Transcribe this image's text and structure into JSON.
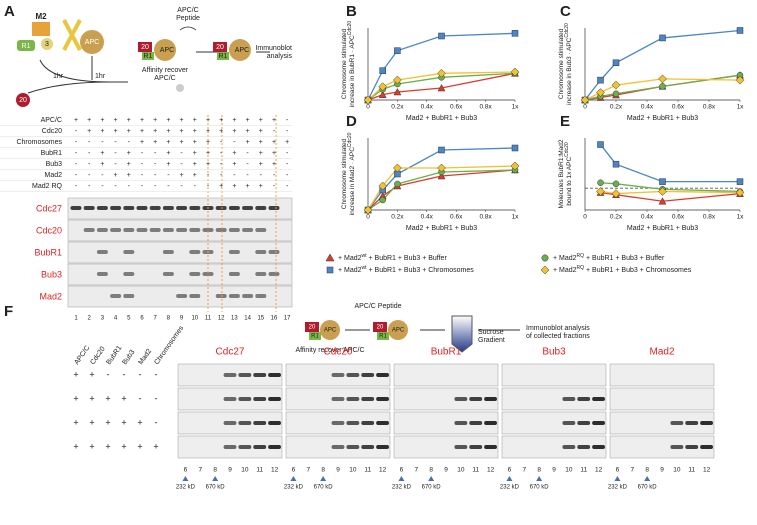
{
  "panel_labels": [
    "A",
    "B",
    "C",
    "D",
    "E",
    "F"
  ],
  "panel_a": {
    "schematic": {
      "m2": "M2",
      "r1": "R1",
      "bub3": "3",
      "apc": "APC",
      "cdc20": "20",
      "step1": "1hr",
      "step2": "1hr",
      "peptide": [
        "APC/C",
        "Peptide"
      ],
      "recover": [
        "Affinity recover",
        "APC/C"
      ],
      "analysis": [
        "Immunoblot",
        "analysis"
      ]
    },
    "table": {
      "rows": [
        {
          "label": "APC/C",
          "cells": [
            "+",
            "+",
            "+",
            "+",
            "+",
            "+",
            "+",
            "+",
            "+",
            "+",
            "+",
            "+",
            "+",
            "+",
            "+",
            "+",
            "-"
          ]
        },
        {
          "label": "Cdc20",
          "cells": [
            "-",
            "+",
            "+",
            "+",
            "+",
            "+",
            "+",
            "+",
            "+",
            "+",
            "+",
            "+",
            "+",
            "+",
            "+",
            "-",
            "-"
          ]
        },
        {
          "label": "Chromosomes",
          "cells": [
            "-",
            "-",
            "-",
            "-",
            "-",
            "+",
            "+",
            "+",
            "+",
            "+",
            "+",
            "-",
            "-",
            "+",
            "+",
            "+",
            "+"
          ]
        },
        {
          "label": "BubR1",
          "cells": [
            "-",
            "-",
            "+",
            "-",
            "+",
            "-",
            "-",
            "+",
            "-",
            "+",
            "+",
            "-",
            "+",
            "-",
            "+",
            "+",
            "-"
          ]
        },
        {
          "label": "Bub3",
          "cells": [
            "-",
            "-",
            "+",
            "-",
            "+",
            "-",
            "-",
            "+",
            "-",
            "+",
            "+",
            "-",
            "+",
            "-",
            "+",
            "+",
            "-"
          ]
        },
        {
          "label": "Mad2",
          "cells": [
            "-",
            "-",
            "-",
            "+",
            "+",
            "-",
            "-",
            "-",
            "+",
            "+",
            "-",
            "-",
            "-",
            "-",
            "-",
            "-",
            "-"
          ]
        },
        {
          "label": "Mad2 RQ",
          "cells": [
            "-",
            "-",
            "-",
            "-",
            "-",
            "-",
            "-",
            "-",
            "-",
            "-",
            "-",
            "+",
            "+",
            "+",
            "+",
            "-",
            "-"
          ]
        }
      ]
    },
    "blots": [
      "Cdc27",
      "Cdc20",
      "BubR1",
      "Bub3",
      "Mad2"
    ],
    "lanes": [
      1,
      2,
      3,
      4,
      5,
      6,
      7,
      8,
      9,
      10,
      11,
      12,
      13,
      14,
      15,
      16,
      17
    ]
  },
  "chart_data": [
    {
      "type": "line",
      "y_label": [
        "Chromosome stimulated",
        "increase in BubR1 · APC"
      ],
      "y_label_sup": "Cdc20",
      "x_label": "Mad2 + BubR1 + Bub3",
      "x": [
        0,
        0.1,
        0.2,
        0.5,
        1
      ],
      "xlim": [
        0,
        1
      ],
      "ylim": [
        0,
        2.7
      ],
      "xticks": [
        0,
        {
          "value": 0.2,
          "label": "0.2x"
        },
        {
          "value": 0.4,
          "label": "0.4x"
        },
        {
          "value": 0.6,
          "label": "0.6x"
        },
        {
          "value": 0.8,
          "label": "0.8x"
        },
        {
          "value": 1,
          "label": "1x"
        }
      ],
      "series": [
        {
          "values": [
            0,
            0.2,
            0.3,
            0.45,
            1.0
          ]
        },
        {
          "values": [
            0,
            1.1,
            1.85,
            2.4,
            2.5
          ]
        },
        {
          "values": [
            0,
            0.4,
            0.6,
            0.85,
            1.0
          ]
        },
        {
          "values": [
            0,
            0.5,
            0.75,
            1.0,
            1.05
          ]
        }
      ]
    },
    {
      "type": "line",
      "y_label": [
        "Chromosome stimulated",
        "increase in Bub3 · APC"
      ],
      "y_label_sup": "Cdc20",
      "x_label": "Mad2 + BubR1 + Bub3",
      "x": [
        0,
        0.1,
        0.2,
        0.5,
        1
      ],
      "xlim": [
        0,
        1
      ],
      "ylim": [
        0,
        2.9
      ],
      "xticks": [
        0,
        {
          "value": 0.2,
          "label": "0.2x"
        },
        {
          "value": 0.4,
          "label": "0.4x"
        },
        {
          "value": 0.6,
          "label": "0.6x"
        },
        {
          "value": 0.8,
          "label": "0.8x"
        },
        {
          "value": 1,
          "label": "1x"
        }
      ],
      "series": [
        {
          "values": [
            0,
            0.1,
            0.2,
            0.55,
            1.0
          ]
        },
        {
          "values": [
            0,
            0.8,
            1.5,
            2.5,
            2.8
          ]
        },
        {
          "values": [
            0,
            0.15,
            0.25,
            0.55,
            1.0
          ]
        },
        {
          "values": [
            0,
            0.3,
            0.6,
            0.85,
            0.8
          ]
        }
      ]
    },
    {
      "type": "line",
      "y_label": [
        "Chromosome stimulated",
        "increase in Mad2 · APC"
      ],
      "y_label_sup": "Cdc20",
      "x_label": "Mad2 + BubR1 + Bub3",
      "x": [
        0,
        0.1,
        0.2,
        0.5,
        1
      ],
      "xlim": [
        0,
        1
      ],
      "ylim": [
        0,
        1.8
      ],
      "xticks": [
        0,
        {
          "value": 0.2,
          "label": "0.2x"
        },
        {
          "value": 0.4,
          "label": "0.4x"
        },
        {
          "value": 0.6,
          "label": "0.6x"
        },
        {
          "value": 0.8,
          "label": "0.8x"
        },
        {
          "value": 1,
          "label": "1x"
        }
      ],
      "series": [
        {
          "values": [
            0,
            0.35,
            0.6,
            0.85,
            1.0
          ]
        },
        {
          "values": [
            0,
            0.5,
            0.9,
            1.5,
            1.55
          ]
        },
        {
          "values": [
            0,
            0.25,
            0.65,
            0.95,
            1.0
          ]
        },
        {
          "values": [
            0,
            0.6,
            1.05,
            1.05,
            1.1
          ]
        }
      ]
    },
    {
      "type": "line",
      "y_label": [
        "Molecules BubR1:Mad2",
        "bound to 1x APC"
      ],
      "y_label_sup": "Cdc20",
      "x_label": "Mad2 + BubR1 + Bub3",
      "x": [
        0.1,
        0.2,
        0.5,
        1
      ],
      "xlim": [
        0,
        1
      ],
      "ylim": [
        0,
        3.3
      ],
      "hline": 1,
      "xticks": [
        0,
        {
          "value": 0.2,
          "label": "0.2x"
        },
        {
          "value": 0.4,
          "label": "0.4x"
        },
        {
          "value": 0.6,
          "label": "0.6x"
        },
        {
          "value": 0.8,
          "label": "0.8x"
        },
        {
          "value": 1,
          "label": "1x"
        }
      ],
      "series": [
        {
          "values": [
            0.8,
            0.7,
            0.4,
            0.75
          ]
        },
        {
          "values": [
            3.0,
            2.1,
            1.3,
            1.3
          ]
        },
        {
          "values": [
            1.25,
            1.2,
            0.95,
            0.85
          ]
        },
        {
          "values": [
            0.85,
            0.75,
            0.85,
            0.8
          ]
        }
      ]
    }
  ],
  "legend": [
    {
      "name": "+ Mad2",
      "sup": "wt",
      "rest": " + BubR1 + Bub3 + Buffer",
      "color": "#e0392b",
      "marker": "triangle"
    },
    {
      "name": "+ Mad2",
      "sup": "wt",
      "rest": " + BubR1 + Bub3 + Chromosomes",
      "color": "#4a86c8",
      "marker": "square"
    },
    {
      "name": "+ Mad2",
      "sup": "RQ",
      "rest": " + BubR1 + Bub3 + Buffer",
      "color": "#6ab04c",
      "marker": "circle"
    },
    {
      "name": "+ Mad2",
      "sup": "RQ",
      "rest": " + BubR1 + Bub3 + Chromosomes",
      "color": "#f2c12e",
      "marker": "diamond"
    }
  ],
  "panel_f": {
    "schematic": {
      "peptide": "APC/C Peptide",
      "recover": "Affinity recover APC/C",
      "gradient": [
        "Sucrose",
        "Gradient"
      ],
      "analysis": [
        "Immunoblot analysis",
        "of collected fractions"
      ],
      "cdc20": "20",
      "r1": "R1",
      "bub3": "3",
      "apc": "APC"
    },
    "columns": [
      "APC/C",
      "Cdc20",
      "BubR1",
      "Bub3",
      "Mad2",
      "Chromosomes"
    ],
    "rows": [
      [
        "+",
        "+",
        "-",
        "-",
        "-",
        "-"
      ],
      [
        "+",
        "+",
        "+",
        "+",
        "-",
        "-"
      ],
      [
        "+",
        "+",
        "+",
        "+",
        "+",
        "-"
      ],
      [
        "+",
        "+",
        "+",
        "+",
        "+",
        "+"
      ]
    ],
    "blots": [
      "Cdc27",
      "Cdc20",
      "BubR1",
      "Bub3",
      "Mad2"
    ],
    "fractions": [
      6,
      7,
      8,
      9,
      10,
      11,
      12
    ],
    "markers": [
      "232 kD",
      "670 kD"
    ]
  }
}
